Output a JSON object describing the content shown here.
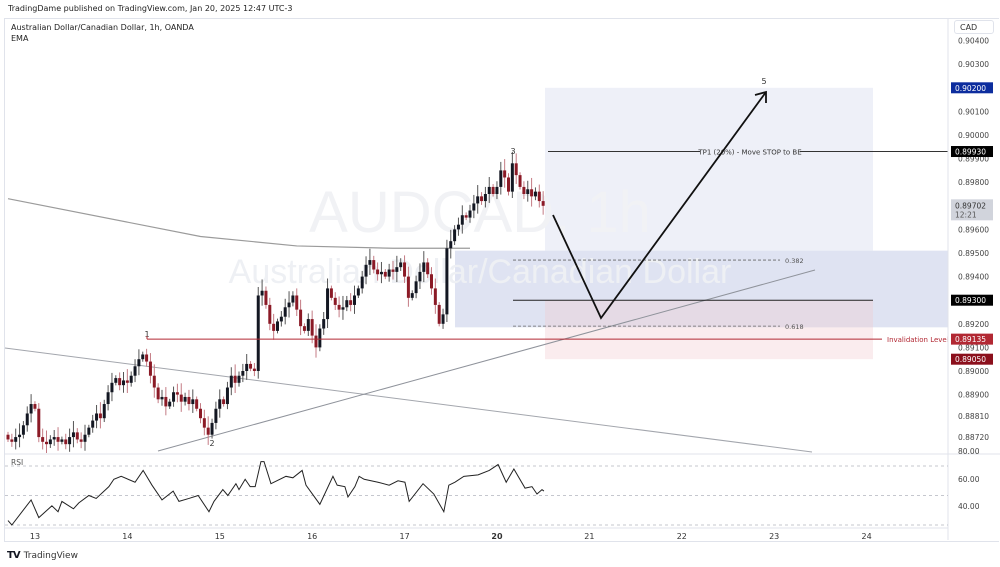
{
  "header": {
    "published": "TradingDame published on TradingView.com, Jan 20, 2025 12:47 UTC-3"
  },
  "legend": {
    "symbol": "Australian Dollar/Canadian Dollar, 1h, OANDA",
    "indicator": "EMA"
  },
  "watermark": {
    "ticker": "AUDCAD, 1h",
    "name": "Australian Dollar/Canadian Dollar"
  },
  "currency": "CAD",
  "colors": {
    "bull": "#131722",
    "bear": "#8b1a26",
    "invalidation": "#b22833",
    "target_badge": "#0d2d9e",
    "stop_badge": "#8b0f1c"
  },
  "price_axis": {
    "labels": [
      "0.90400",
      "0.90300",
      "0.90100",
      "0.90000",
      "0.89900",
      "0.89800",
      "0.89600",
      "0.89500",
      "0.89400",
      "0.89200",
      "0.89100",
      "0.89000",
      "0.88900",
      "0.88810",
      "0.88720"
    ]
  },
  "badges": {
    "target": "0.90200",
    "tp1": "0.89930",
    "last_price": "0.89702",
    "countdown": "12:21",
    "entry": "0.89300",
    "invalidation": "0.89135",
    "stop": "0.89050"
  },
  "annotations": {
    "wave_labels": [
      "1",
      "2",
      "3",
      "5"
    ],
    "tp1_text": "TP1 (20%) - Move STOP to BE",
    "invalidation_text": "Invalidation Level",
    "fib_382": "0.382",
    "fib_618": "0.618"
  },
  "time_axis": {
    "labels": [
      "13",
      "14",
      "15",
      "16",
      "17",
      "20",
      "21",
      "22",
      "23",
      "24"
    ],
    "bold": "20"
  },
  "rsi": {
    "label": "RSI",
    "axis_labels": [
      "80.00",
      "60.00",
      "40.00"
    ],
    "series": [
      [
        0,
        33
      ],
      [
        1,
        30
      ],
      [
        6,
        47
      ],
      [
        8,
        35
      ],
      [
        11.4,
        43
      ],
      [
        13,
        39
      ],
      [
        14,
        46
      ],
      [
        17,
        41
      ],
      [
        18.4,
        45
      ],
      [
        21,
        50
      ],
      [
        22.9,
        48
      ],
      [
        26.2,
        56
      ],
      [
        27.5,
        61
      ],
      [
        29.4,
        63
      ],
      [
        33,
        59
      ],
      [
        35.1,
        67
      ],
      [
        37.4,
        57
      ],
      [
        40,
        47
      ],
      [
        42.9,
        53
      ],
      [
        44.4,
        46
      ],
      [
        47,
        48
      ],
      [
        49.4,
        50
      ],
      [
        52.2,
        39
      ],
      [
        53.5,
        46
      ],
      [
        55.8,
        54
      ],
      [
        57.1,
        50
      ],
      [
        59.2,
        58
      ],
      [
        60,
        54
      ],
      [
        61.6,
        61
      ],
      [
        62.9,
        56
      ],
      [
        64.2,
        56
      ],
      [
        65.7,
        73
      ],
      [
        66.5,
        73
      ],
      [
        68.3,
        58
      ],
      [
        72.2,
        63
      ],
      [
        74,
        62
      ],
      [
        76.4,
        67
      ],
      [
        77.4,
        57
      ],
      [
        81,
        44
      ],
      [
        84.4,
        63
      ],
      [
        85.5,
        57
      ],
      [
        87.5,
        56
      ],
      [
        88.3,
        49
      ],
      [
        90.1,
        56
      ],
      [
        91.2,
        63
      ],
      [
        92.5,
        61
      ],
      [
        96.1,
        59
      ],
      [
        99,
        57
      ],
      [
        101.3,
        60
      ],
      [
        103.1,
        59
      ],
      [
        104.2,
        46
      ],
      [
        107.8,
        58
      ],
      [
        110.6,
        51
      ],
      [
        113.2,
        39
      ],
      [
        114.5,
        57
      ],
      [
        116.1,
        59
      ],
      [
        118.4,
        63
      ],
      [
        122.1,
        64
      ],
      [
        125,
        67
      ],
      [
        127.3,
        71
      ],
      [
        129.4,
        59
      ],
      [
        131.4,
        68
      ],
      [
        134.3,
        55
      ],
      [
        136.1,
        56
      ],
      [
        137.4,
        51
      ],
      [
        138.7,
        54
      ],
      [
        139.2,
        53
      ]
    ]
  },
  "chart_data": {
    "type": "candlestick",
    "title": "Australian Dollar/Canadian Dollar, 1h, OANDA",
    "ylim": [
      0.8866,
      0.9052
    ],
    "closes": [
      0.8871,
      0.887,
      0.8872,
      0.8873,
      0.8877,
      0.8882,
      0.8886,
      0.8884,
      0.8872,
      0.887,
      0.8869,
      0.8871,
      0.8872,
      0.887,
      0.8871,
      0.8869,
      0.8872,
      0.8874,
      0.8871,
      0.887,
      0.8873,
      0.8876,
      0.8879,
      0.8882,
      0.888,
      0.8886,
      0.8891,
      0.8895,
      0.8897,
      0.8894,
      0.8896,
      0.8895,
      0.8898,
      0.8902,
      0.8905,
      0.8907,
      0.8904,
      0.8898,
      0.8893,
      0.8888,
      0.8889,
      0.8885,
      0.8887,
      0.8891,
      0.889,
      0.8887,
      0.8889,
      0.8886,
      0.8888,
      0.8884,
      0.888,
      0.8876,
      0.8873,
      0.8878,
      0.8884,
      0.8888,
      0.8886,
      0.8893,
      0.8898,
      0.8895,
      0.8898,
      0.89,
      0.8903,
      0.8901,
      0.89,
      0.8932,
      0.8934,
      0.8928,
      0.892,
      0.8917,
      0.8921,
      0.8923,
      0.8927,
      0.8929,
      0.8932,
      0.8926,
      0.8919,
      0.8917,
      0.8922,
      0.8915,
      0.891,
      0.8918,
      0.8922,
      0.8935,
      0.8931,
      0.8928,
      0.8926,
      0.8927,
      0.893,
      0.8928,
      0.8932,
      0.8935,
      0.894,
      0.8945,
      0.8947,
      0.8943,
      0.8941,
      0.8942,
      0.894,
      0.8943,
      0.8942,
      0.8944,
      0.8946,
      0.894,
      0.8931,
      0.8933,
      0.8938,
      0.8942,
      0.8946,
      0.8941,
      0.8935,
      0.8928,
      0.892,
      0.8924,
      0.8952,
      0.8955,
      0.896,
      0.8962,
      0.8966,
      0.8965,
      0.8968,
      0.8971,
      0.8974,
      0.8972,
      0.8975,
      0.8978,
      0.8975,
      0.8978,
      0.8985,
      0.8982,
      0.8976,
      0.8988,
      0.8983,
      0.8978,
      0.8975,
      0.8977,
      0.8974,
      0.8976,
      0.8972,
      0.897
    ],
    "ema": [
      [
        0,
        0.8973
      ],
      [
        50,
        0.8957
      ],
      [
        75,
        0.8953
      ],
      [
        100,
        0.8952
      ],
      [
        120,
        0.8952
      ]
    ],
    "levels": {
      "target": 0.902,
      "tp1": 0.8993,
      "fib_382": 0.8947,
      "entry": 0.893,
      "fib_618": 0.8919,
      "invalidation": 0.89135,
      "stop": 0.8905,
      "last": 0.89702
    }
  }
}
